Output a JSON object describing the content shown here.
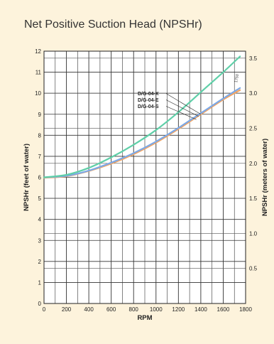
{
  "title": "Net Positive Suction Head (NPSHr)",
  "chart_data": {
    "type": "line",
    "title": "Net Positive Suction Head (NPSHr)",
    "xlabel": "RPM",
    "ylabel": "NPSHr (feet of water)",
    "y2label": "NPSHr (meters of water)",
    "xlim": [
      0,
      1800
    ],
    "ylim": [
      0,
      12
    ],
    "y2lim": [
      0,
      3.6
    ],
    "xticks": [
      "0",
      "200",
      "400",
      "600",
      "800",
      "1000",
      "1200",
      "1400",
      "1600",
      "1800"
    ],
    "yticks": [
      "0",
      "1",
      "2",
      "3",
      "4",
      "5",
      "6",
      "7",
      "8",
      "9",
      "10",
      "11",
      "12"
    ],
    "y2ticks": [
      "0.5",
      "1.0",
      "1.5",
      "2.0",
      "2.5",
      "3.0",
      "3.5"
    ],
    "grid": true,
    "annotation": "1750",
    "series": [
      {
        "name": "D/G-04-X",
        "color": "#5fcfa8",
        "x": [
          0,
          200,
          400,
          600,
          800,
          1000,
          1200,
          1400,
          1600,
          1750
        ],
        "values": [
          6.0,
          6.12,
          6.45,
          6.95,
          7.55,
          8.25,
          9.1,
          10.05,
          11.0,
          11.75
        ]
      },
      {
        "name": "D/G-04-E",
        "color": "#f4a460",
        "x": [
          0,
          200,
          400,
          600,
          800,
          1000,
          1200,
          1400,
          1600,
          1750
        ],
        "values": [
          5.98,
          6.05,
          6.3,
          6.65,
          7.1,
          7.65,
          8.3,
          9.0,
          9.7,
          10.15
        ]
      },
      {
        "name": "D/G-04-S",
        "color": "#7da9e6",
        "x": [
          0,
          200,
          400,
          600,
          800,
          1000,
          1200,
          1400,
          1600,
          1750
        ],
        "values": [
          6.0,
          6.07,
          6.32,
          6.7,
          7.15,
          7.7,
          8.35,
          9.05,
          9.75,
          10.25
        ]
      }
    ]
  }
}
